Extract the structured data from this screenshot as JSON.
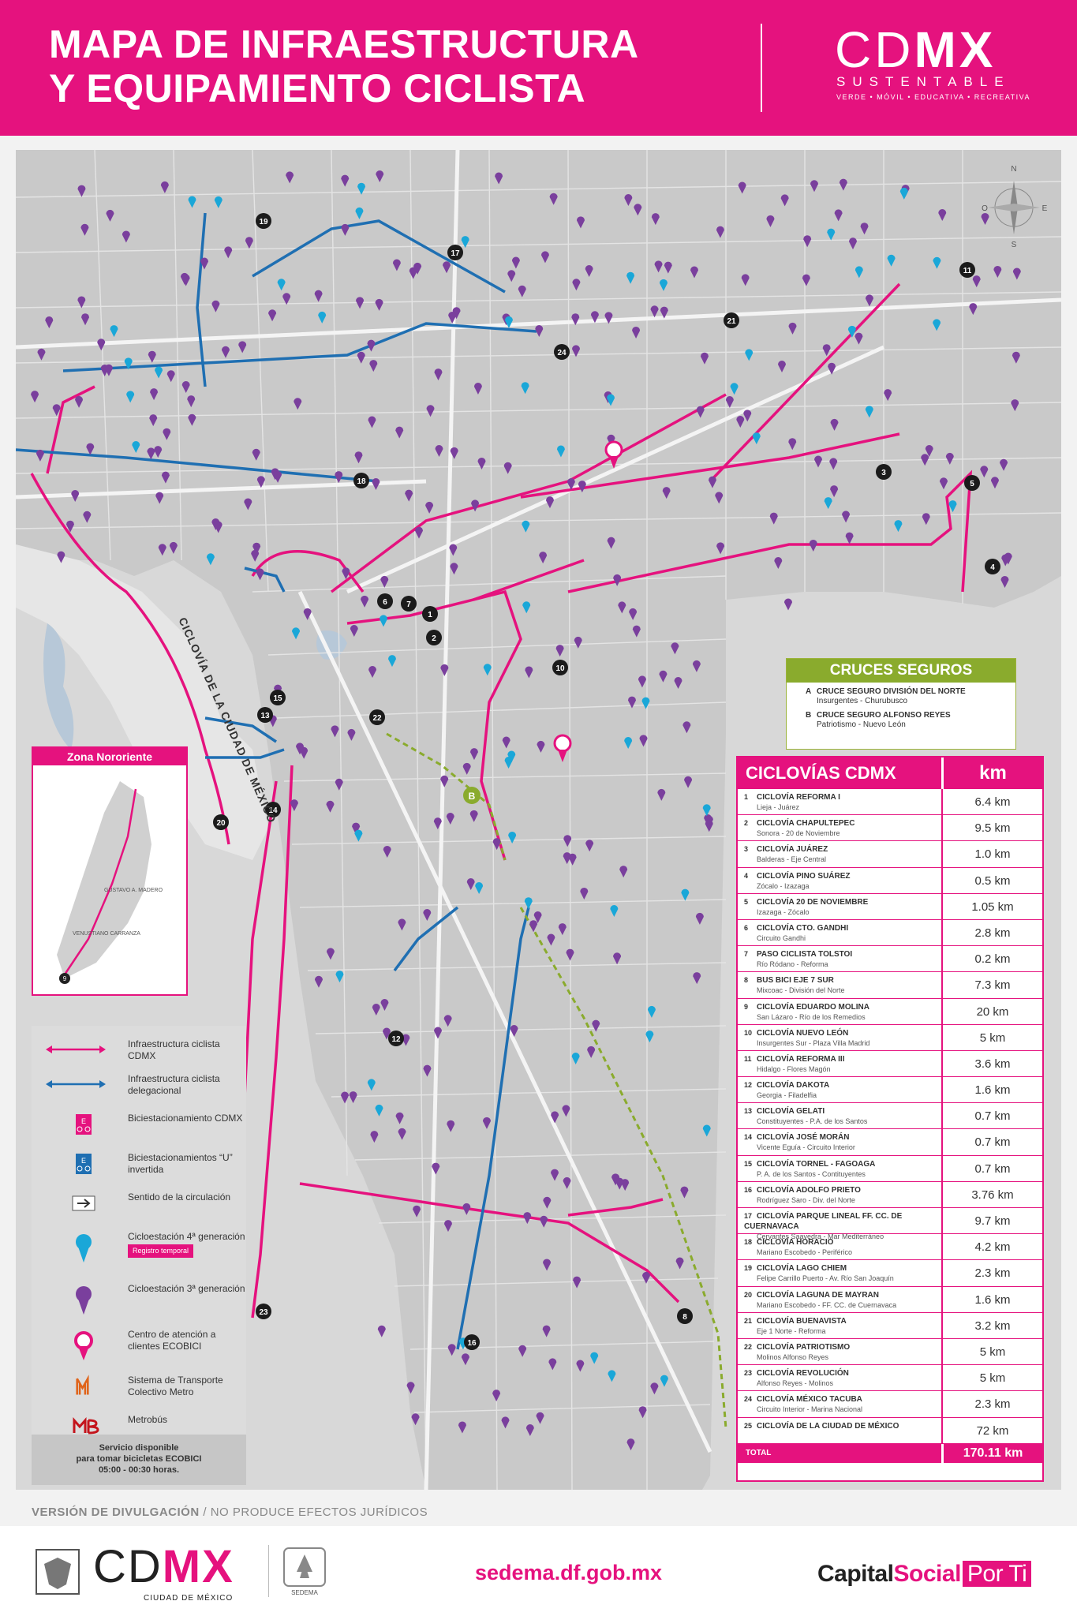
{
  "header": {
    "title_line1": "MAPA DE INFRAESTRUCTURA",
    "title_line2": "Y EQUIPAMIENTO CICLISTA",
    "brand": "CDMX",
    "brand_sub": "SUSTENTABLE",
    "brand_tag": "VERDE • MÓVIL • EDUCATIVA • RECREATIVA"
  },
  "compass": {
    "n": "N",
    "s": "S",
    "e": "E",
    "o": "O"
  },
  "map_labels": {
    "ciclovia_cdmx": "CICLOVÍA DE LA CIUDAD DE MÉXICO",
    "crossing_b": "B"
  },
  "route_markers": [
    "1",
    "2",
    "3",
    "4",
    "5",
    "6",
    "7",
    "8",
    "10",
    "11",
    "12",
    "13",
    "14",
    "15",
    "16",
    "17",
    "18",
    "19",
    "20",
    "21",
    "22",
    "23",
    "24",
    "9"
  ],
  "cruces": {
    "title": "CRUCES SEGUROS",
    "items": [
      {
        "key": "A",
        "name": "CRUCE SEGURO DIVISIÓN DEL NORTE",
        "detail": "Insurgentes - Churubusco"
      },
      {
        "key": "B",
        "name": "CRUCE SEGURO ALFONSO REYES",
        "detail": "Patriotismo - Nuevo León"
      }
    ]
  },
  "ciclovias": {
    "title": "CICLOVÍAS CDMX",
    "unit": "km",
    "rows": [
      {
        "num": "1",
        "name": "CICLOVÍA REFORMA I",
        "sub": "Lieja - Juárez",
        "km": "6.4 km"
      },
      {
        "num": "2",
        "name": "CICLOVÍA CHAPULTEPEC",
        "sub": "Sonora - 20 de Noviembre",
        "km": "9.5 km"
      },
      {
        "num": "3",
        "name": "CICLOVÍA JUÁREZ",
        "sub": "Balderas - Eje Central",
        "km": "1.0 km"
      },
      {
        "num": "4",
        "name": "CICLOVÍA PINO SUÁREZ",
        "sub": "Zócalo - Izazaga",
        "km": "0.5 km"
      },
      {
        "num": "5",
        "name": "CICLOVÍA 20 DE NOVIEMBRE",
        "sub": "Izazaga - Zócalo",
        "km": "1.05 km"
      },
      {
        "num": "6",
        "name": "CICLOVÍA CTO. GANDHI",
        "sub": "Circuito Gandhi",
        "km": "2.8 km"
      },
      {
        "num": "7",
        "name": "PASO CICLISTA TOLSTOI",
        "sub": "Río Ródano - Reforma",
        "km": "0.2 km"
      },
      {
        "num": "8",
        "name": "BUS BICI EJE 7 SUR",
        "sub": "Mixcoac - División del Norte",
        "km": "7.3 km"
      },
      {
        "num": "9",
        "name": "CICLOVÍA EDUARDO MOLINA",
        "sub": "San Lázaro - Río de los Remedios",
        "km": "20 km"
      },
      {
        "num": "10",
        "name": "CICLOVÍA NUEVO LEÓN",
        "sub": "Insurgentes Sur - Plaza Villa Madrid",
        "km": "5 km"
      },
      {
        "num": "11",
        "name": "CICLOVÍA REFORMA III",
        "sub": "Hidalgo - Flores Magón",
        "km": "3.6 km"
      },
      {
        "num": "12",
        "name": "CICLOVÍA DAKOTA",
        "sub": "Georgia - Filadelfia",
        "km": "1.6 km"
      },
      {
        "num": "13",
        "name": "CICLOVÍA GELATI",
        "sub": "Constituyentes - P.A. de los Santos",
        "km": "0.7 km"
      },
      {
        "num": "14",
        "name": "CICLOVÍA JOSÉ MORÁN",
        "sub": "Vicente Eguía - Circuito Interior",
        "km": "0.7 km"
      },
      {
        "num": "15",
        "name": "CICLOVÍA TORNEL - FAGOAGA",
        "sub": "P. A. de los Santos - Contituyentes",
        "km": "0.7 km"
      },
      {
        "num": "16",
        "name": "CICLOVÍA ADOLFO PRIETO",
        "sub": "Rodríguez Saro - Div. del Norte",
        "km": "3.76 km"
      },
      {
        "num": "17",
        "name": "CICLOVÍA PARQUE LINEAL FF. CC. DE CUERNAVACA",
        "sub": "Cervantes Saavedra - Mar Mediterráneo",
        "km": "9.7 km"
      },
      {
        "num": "18",
        "name": "CICLOVÍA HORACIO",
        "sub": "Mariano Escobedo - Periférico",
        "km": "4.2 km"
      },
      {
        "num": "19",
        "name": "CICLOVÍA LAGO CHIEM",
        "sub": "Felipe Carrillo Puerto - Av. Río San Joaquín",
        "km": "2.3 km"
      },
      {
        "num": "20",
        "name": "CICLOVÍA LAGUNA DE MAYRAN",
        "sub": "Mariano Escobedo - FF. CC. de Cuernavaca",
        "km": "1.6 km"
      },
      {
        "num": "21",
        "name": "CICLOVÍA BUENAVISTA",
        "sub": "Eje 1 Norte - Reforma",
        "km": "3.2 km"
      },
      {
        "num": "22",
        "name": "CICLOVÍA PATRIOTISMO",
        "sub": "Molinos Alfonso Reyes",
        "km": "5 km"
      },
      {
        "num": "23",
        "name": "CICLOVÍA REVOLUCIÓN",
        "sub": "Alfonso Reyes - Molinos",
        "km": "5 km"
      },
      {
        "num": "24",
        "name": "CICLOVÍA MÉXICO TACUBA",
        "sub": "Circuito Interior - Marina Nacional",
        "km": "2.3 km"
      },
      {
        "num": "25",
        "name": "CICLOVÍA DE LA CIUDAD DE MÉXICO",
        "sub": "",
        "km": "72 km"
      }
    ],
    "total_label": "TOTAL",
    "total_km": "170.11 km"
  },
  "zona": {
    "title": "Zona Nororiente",
    "labels": [
      "GUSTAVO A. MADERO",
      "VENUSTIANO CARRANZA"
    ]
  },
  "legend": {
    "items": [
      {
        "label": "Infraestructura ciclista CDMX"
      },
      {
        "label": "Infraestructura ciclista delegacional"
      },
      {
        "label": "Biciestacionamiento CDMX"
      },
      {
        "label": "Biciestacionamientos “U” invertida"
      },
      {
        "label": "Sentido de la circulación"
      },
      {
        "label": "Cicloestación 4ª generación",
        "tag": "Registro temporal"
      },
      {
        "label": "Cicloestación 3ª generación"
      },
      {
        "label": "Centro de atención a clientes ECOBICI"
      },
      {
        "label": "Sistema de Transporte Colectivo Metro"
      },
      {
        "label": "Metrobús"
      }
    ],
    "service_line1": "Servicio disponible",
    "service_line2": "para tomar bicicletas ECOBICI",
    "service_line3": "05:00 - 00:30 horas."
  },
  "disclaimer": {
    "bold": "VERSIÓN DE DIVULGACIÓN",
    "rest": " / NO PRODUCE EFECTOS JURÍDICOS"
  },
  "footer": {
    "brand": "CDMX",
    "brand_sub": "CIUDAD DE MÉXICO",
    "sedema": "SEDEMA",
    "url": "sedema.df.gob.mx",
    "capital": "Capital",
    "social": "Social",
    "porti": "Por Ti"
  },
  "colors": {
    "pink": "#e5127e",
    "blue": "#1f6fb2",
    "green": "#8aab2d",
    "purple": "#7a3f9d",
    "cyan": "#1aa7d8"
  }
}
